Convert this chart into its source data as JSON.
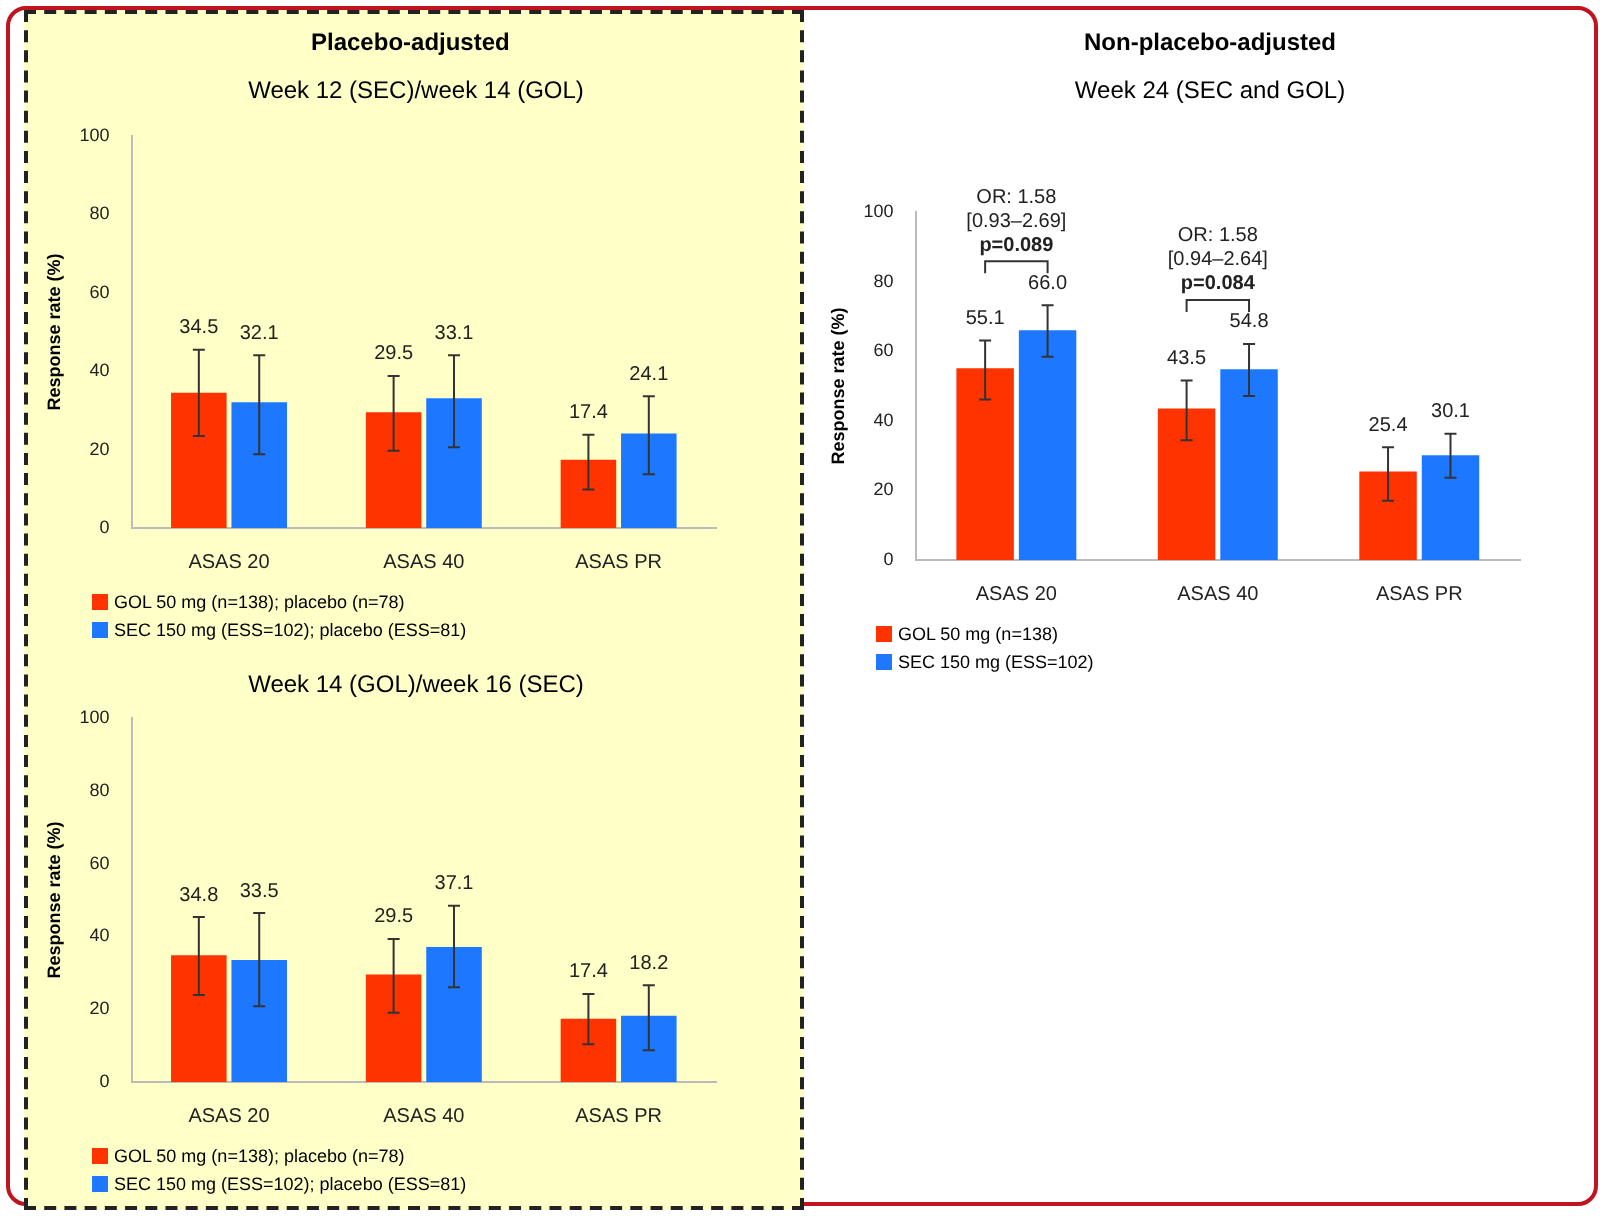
{
  "chart_data": [
    {
      "type": "bar",
      "title": "Week 12 (SEC)/week 14 (GOL)",
      "ylabel": "Response rate (%)",
      "annotations": [
        "Placebo-adjusted"
      ],
      "categories": [
        "ASAS 20",
        "ASAS 40",
        "ASAS PR"
      ],
      "series": [
        {
          "name": "GOL 50 mg (n=138); placebo (n=78)",
          "color": "#ff3300",
          "values": [
            34.5,
            29.5,
            17.4
          ],
          "value_labels": [
            "34.5",
            "29.5",
            "17.4"
          ],
          "errors": [
            [
              23.5,
              45.5
            ],
            [
              19.7,
              38.8
            ],
            [
              9.8,
              23.8
            ]
          ]
        },
        {
          "name": "SEC 150 mg (ESS=102); placebo (ESS=81)",
          "color": "#1e78ff",
          "values": [
            32.1,
            33.1,
            24.1
          ],
          "value_labels": [
            "32.1",
            "33.1",
            "24.1"
          ],
          "errors": [
            [
              18.8,
              44.1
            ],
            [
              20.6,
              44.1
            ],
            [
              13.7,
              33.6
            ]
          ]
        }
      ],
      "ylim": [
        0,
        100
      ],
      "yticks": [
        0,
        20,
        40,
        60,
        80,
        100
      ],
      "legend": "bottom"
    },
    {
      "type": "bar",
      "title": "Week 24 (SEC and GOL)",
      "ylabel": "Response rate (%)",
      "annotations": [
        "Non-placebo-adjusted",
        "OR: 1.58\n[0.93–2.69]\np=0.089",
        "OR: 1.58\n[0.94–2.64]\np=0.084"
      ],
      "categories": [
        "ASAS 20",
        "ASAS 40",
        "ASAS PR"
      ],
      "series": [
        {
          "name": "GOL 50 mg (n=138)",
          "color": "#ff3300",
          "values": [
            55.1,
            43.5,
            25.4
          ],
          "value_labels": [
            "55.1",
            "43.5",
            "25.4"
          ],
          "errors": [
            [
              46.1,
              63.1
            ],
            [
              34.4,
              51.6
            ],
            [
              17.0,
              32.4
            ]
          ]
        },
        {
          "name": "SEC 150 mg (ESS=102)",
          "color": "#1e78ff",
          "values": [
            66.0,
            54.8,
            30.1
          ],
          "value_labels": [
            "66.0",
            "54.8",
            "30.1"
          ],
          "errors": [
            [
              58.4,
              73.2
            ],
            [
              47.1,
              62.1
            ],
            [
              23.6,
              36.3
            ]
          ]
        }
      ],
      "ylim": [
        0,
        100
      ],
      "yticks": [
        0,
        20,
        40,
        60,
        80,
        100
      ],
      "legend": "bottom"
    },
    {
      "type": "bar",
      "title": "Week 14 (GOL)/week 16 (SEC)",
      "ylabel": "Response rate (%)",
      "categories": [
        "ASAS 20",
        "ASAS 40",
        "ASAS PR"
      ],
      "series": [
        {
          "name": "GOL 50 mg (n=138); placebo (n=78)",
          "color": "#ff3300",
          "values": [
            34.8,
            29.5,
            17.4
          ],
          "value_labels": [
            "34.8",
            "29.5",
            "17.4"
          ],
          "errors": [
            [
              23.9,
              45.3
            ],
            [
              19.0,
              39.3
            ],
            [
              10.4,
              24.2
            ]
          ]
        },
        {
          "name": "SEC 150 mg (ESS=102); placebo (ESS=81)",
          "color": "#1e78ff",
          "values": [
            33.5,
            37.1,
            18.2
          ],
          "value_labels": [
            "33.5",
            "37.1",
            "18.2"
          ],
          "errors": [
            [
              20.8,
              46.4
            ],
            [
              26.0,
              48.4
            ],
            [
              8.7,
              26.6
            ]
          ]
        }
      ],
      "ylim": [
        0,
        100
      ],
      "yticks": [
        0,
        20,
        40,
        60,
        80,
        100
      ],
      "legend": "bottom"
    }
  ]
}
